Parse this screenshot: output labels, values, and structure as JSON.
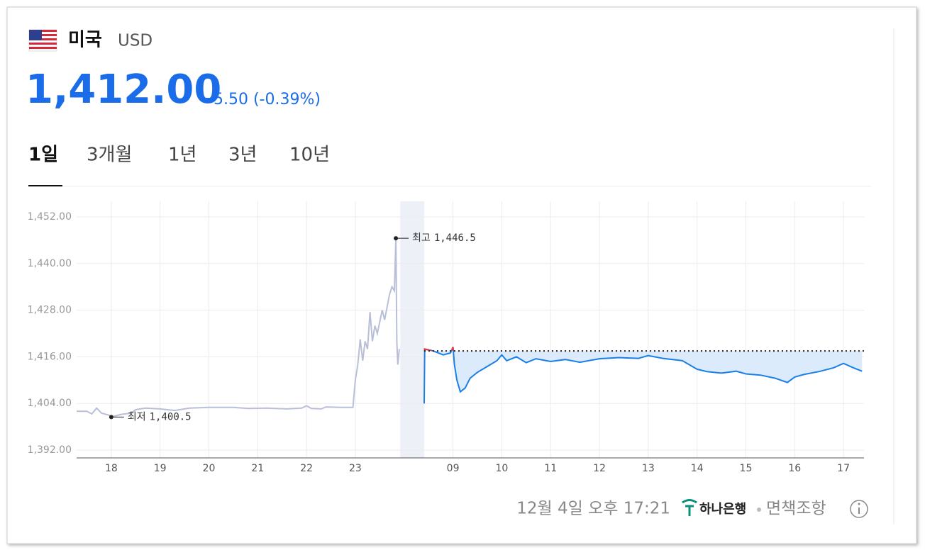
{
  "header": {
    "country": "미국",
    "currency": "USD",
    "price": "1,412.00",
    "change": "5.50 (-0.39%)"
  },
  "tabs": [
    "1일",
    "3개월",
    "1년",
    "3년",
    "10년"
  ],
  "selected_tab": 0,
  "chart_data": {
    "type": "line",
    "xlim": [
      -0.71,
      15.42
    ],
    "ylim": [
      1390,
      1456
    ],
    "grid": true,
    "yticks": [
      {
        "value": 1392,
        "label": "1,392.00"
      },
      {
        "value": 1404,
        "label": "1,404.00"
      },
      {
        "value": 1416,
        "label": "1,416.00"
      },
      {
        "value": 1428,
        "label": "1,428.00"
      },
      {
        "value": 1440,
        "label": "1,440.00"
      },
      {
        "value": 1452,
        "label": "1,452.00"
      }
    ],
    "xticks": [
      {
        "value": 0,
        "label": "18"
      },
      {
        "value": 1,
        "label": "19"
      },
      {
        "value": 2,
        "label": "20"
      },
      {
        "value": 3,
        "label": "21"
      },
      {
        "value": 4,
        "label": "22"
      },
      {
        "value": 5,
        "label": "23"
      },
      {
        "value": 7,
        "label": "09"
      },
      {
        "value": 8,
        "label": "10"
      },
      {
        "value": 9,
        "label": "11"
      },
      {
        "value": 10,
        "label": "12"
      },
      {
        "value": 11,
        "label": "13"
      },
      {
        "value": 12,
        "label": "14"
      },
      {
        "value": 13,
        "label": "15"
      },
      {
        "value": 14,
        "label": "16"
      },
      {
        "value": 15,
        "label": "17"
      }
    ],
    "night_band": [
      5.92,
      6.41
    ],
    "reference": 1417.5,
    "series": [
      {
        "color": "#b9bfd6",
        "x": [
          -0.71,
          -0.5,
          -0.4,
          -0.3,
          -0.2,
          -0.05,
          0,
          0.2,
          0.4,
          0.5,
          0.7,
          1.0,
          1.3,
          1.6,
          2.0,
          2.5,
          2.8,
          3.2,
          3.6,
          3.9,
          4.0,
          4.1,
          4.3,
          4.4,
          4.7,
          4.95,
          5.0,
          5.05,
          5.1,
          5.15,
          5.2,
          5.25,
          5.3,
          5.35,
          5.4,
          5.45,
          5.55,
          5.6,
          5.7,
          5.75,
          5.8,
          5.83,
          5.85,
          5.87,
          5.9
        ],
        "values": [
          1402.0,
          1402.0,
          1401.3,
          1402.8,
          1401.5,
          1401.0,
          1400.5,
          1401.2,
          1401.5,
          1402.4,
          1402.8,
          1402.6,
          1402.2,
          1402.8,
          1403.0,
          1403.0,
          1402.7,
          1402.8,
          1402.6,
          1402.8,
          1403.4,
          1402.7,
          1402.6,
          1403.1,
          1403.0,
          1403.0,
          1410.0,
          1414.0,
          1420.5,
          1415.0,
          1420.0,
          1418.0,
          1427.5,
          1420.0,
          1424.0,
          1422.0,
          1428.0,
          1425.5,
          1432.0,
          1434.0,
          1433.0,
          1446.5,
          1420.0,
          1414.0,
          1418.0
        ]
      },
      {
        "color": "#1a7fe8",
        "fill": "#dcebfb",
        "x": [
          6.41,
          6.42,
          6.6,
          6.8,
          6.95,
          7.0,
          7.03,
          7.08,
          7.15,
          7.25,
          7.35,
          7.5,
          7.7,
          7.9,
          8.0,
          8.1,
          8.3,
          8.5,
          8.7,
          9.0,
          9.3,
          9.6,
          10.0,
          10.4,
          10.8,
          11.0,
          11.3,
          11.7,
          12.0,
          12.2,
          12.5,
          12.8,
          13.0,
          13.3,
          13.6,
          13.85,
          14.0,
          14.2,
          14.5,
          14.8,
          15.0,
          15.2,
          15.38
        ],
        "values": [
          1404.0,
          1418.0,
          1417.5,
          1416.5,
          1417.0,
          1418.5,
          1414.0,
          1410.0,
          1407.0,
          1408.0,
          1410.5,
          1412.0,
          1413.5,
          1415.0,
          1416.5,
          1415.0,
          1416.0,
          1414.5,
          1415.5,
          1414.8,
          1415.3,
          1414.6,
          1415.5,
          1415.8,
          1415.6,
          1416.3,
          1415.6,
          1415.0,
          1412.8,
          1412.2,
          1411.8,
          1412.3,
          1411.6,
          1411.3,
          1410.5,
          1409.4,
          1410.8,
          1411.5,
          1412.2,
          1413.2,
          1414.3,
          1413.2,
          1412.3
        ]
      }
    ],
    "high": {
      "label": "최고",
      "x": 5.83,
      "value": 1446.5,
      "value_label": "1,446.5"
    },
    "low": {
      "label": "최저",
      "x": 0,
      "value": 1400.5,
      "value_label": "1,400.5"
    }
  },
  "footer": {
    "timestamp": "12월 4일 오후 17:21",
    "bank": "하나은행",
    "disclaimer": "면책조항"
  }
}
